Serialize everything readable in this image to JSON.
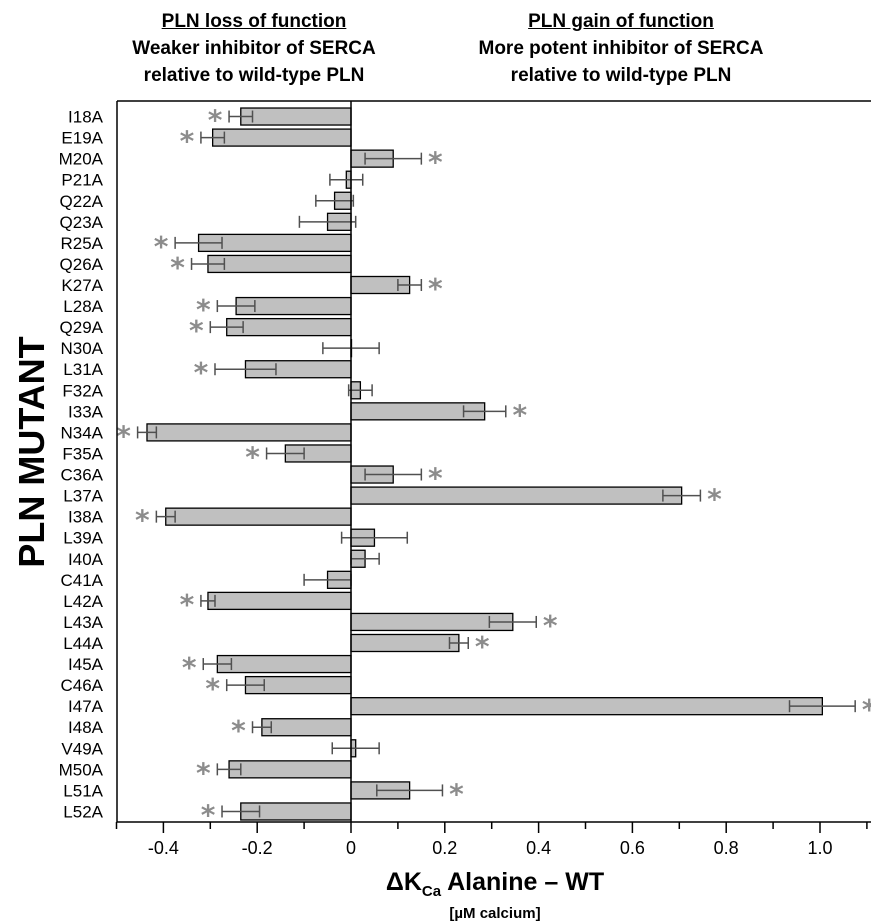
{
  "headers": {
    "left": {
      "title": "PLN loss of function",
      "line1": "Weaker inhibitor of SERCA",
      "line2": "relative to wild-type PLN"
    },
    "right": {
      "title": "PLN gain of function",
      "line1": "More potent inhibitor of SERCA",
      "line2": "relative to wild-type PLN"
    }
  },
  "chart_data": {
    "type": "bar",
    "orientation": "horizontal",
    "ylabel": "PLN MUTANT",
    "xlabel_main": "ΔK",
    "xlabel_sub": "Ca",
    "xlabel_rest": " Alanine – WT",
    "xunit": "[µM calcium]",
    "xlim": [
      -0.5,
      1.1
    ],
    "xticks": [
      -0.4,
      -0.2,
      0,
      0.2,
      0.4,
      0.6,
      0.8,
      1.0
    ],
    "xtick_labels": [
      "-0.4",
      "-0.2",
      "0",
      "0.2",
      "0.4",
      "0.6",
      "0.8",
      "1.0"
    ],
    "significance_marker": "*",
    "categories": [
      "I18A",
      "E19A",
      "M20A",
      "P21A",
      "Q22A",
      "Q23A",
      "R25A",
      "Q26A",
      "K27A",
      "L28A",
      "Q29A",
      "N30A",
      "L31A",
      "F32A",
      "I33A",
      "N34A",
      "F35A",
      "C36A",
      "L37A",
      "I38A",
      "L39A",
      "I40A",
      "C41A",
      "L42A",
      "L43A",
      "L44A",
      "I45A",
      "C46A",
      "I47A",
      "I48A",
      "V49A",
      "M50A",
      "L51A",
      "L52A"
    ],
    "values": [
      -0.235,
      -0.295,
      0.09,
      -0.01,
      -0.035,
      -0.05,
      -0.325,
      -0.305,
      0.125,
      -0.245,
      -0.265,
      0.0,
      -0.225,
      0.02,
      0.285,
      -0.435,
      -0.14,
      0.09,
      0.705,
      -0.395,
      0.05,
      0.03,
      -0.05,
      -0.305,
      0.345,
      0.23,
      -0.285,
      -0.225,
      1.005,
      -0.19,
      0.01,
      -0.26,
      0.125,
      -0.235
    ],
    "errors": [
      0.025,
      0.025,
      0.06,
      0.035,
      0.04,
      0.06,
      0.05,
      0.035,
      0.025,
      0.04,
      0.035,
      0.06,
      0.065,
      0.025,
      0.045,
      0.02,
      0.04,
      0.06,
      0.04,
      0.02,
      0.07,
      0.03,
      0.05,
      0.015,
      0.05,
      0.02,
      0.03,
      0.04,
      0.07,
      0.02,
      0.05,
      0.025,
      0.07,
      0.04
    ],
    "significant": [
      true,
      true,
      true,
      false,
      false,
      false,
      true,
      true,
      true,
      true,
      true,
      false,
      true,
      false,
      true,
      true,
      true,
      true,
      true,
      true,
      false,
      false,
      false,
      true,
      true,
      true,
      true,
      true,
      true,
      true,
      false,
      true,
      true,
      true
    ],
    "colors": {
      "bar": "#c0c0c0",
      "edge": "#000000",
      "error": "#505050",
      "star": "#8c8c8c",
      "axis": "#000000"
    },
    "grid": false
  }
}
